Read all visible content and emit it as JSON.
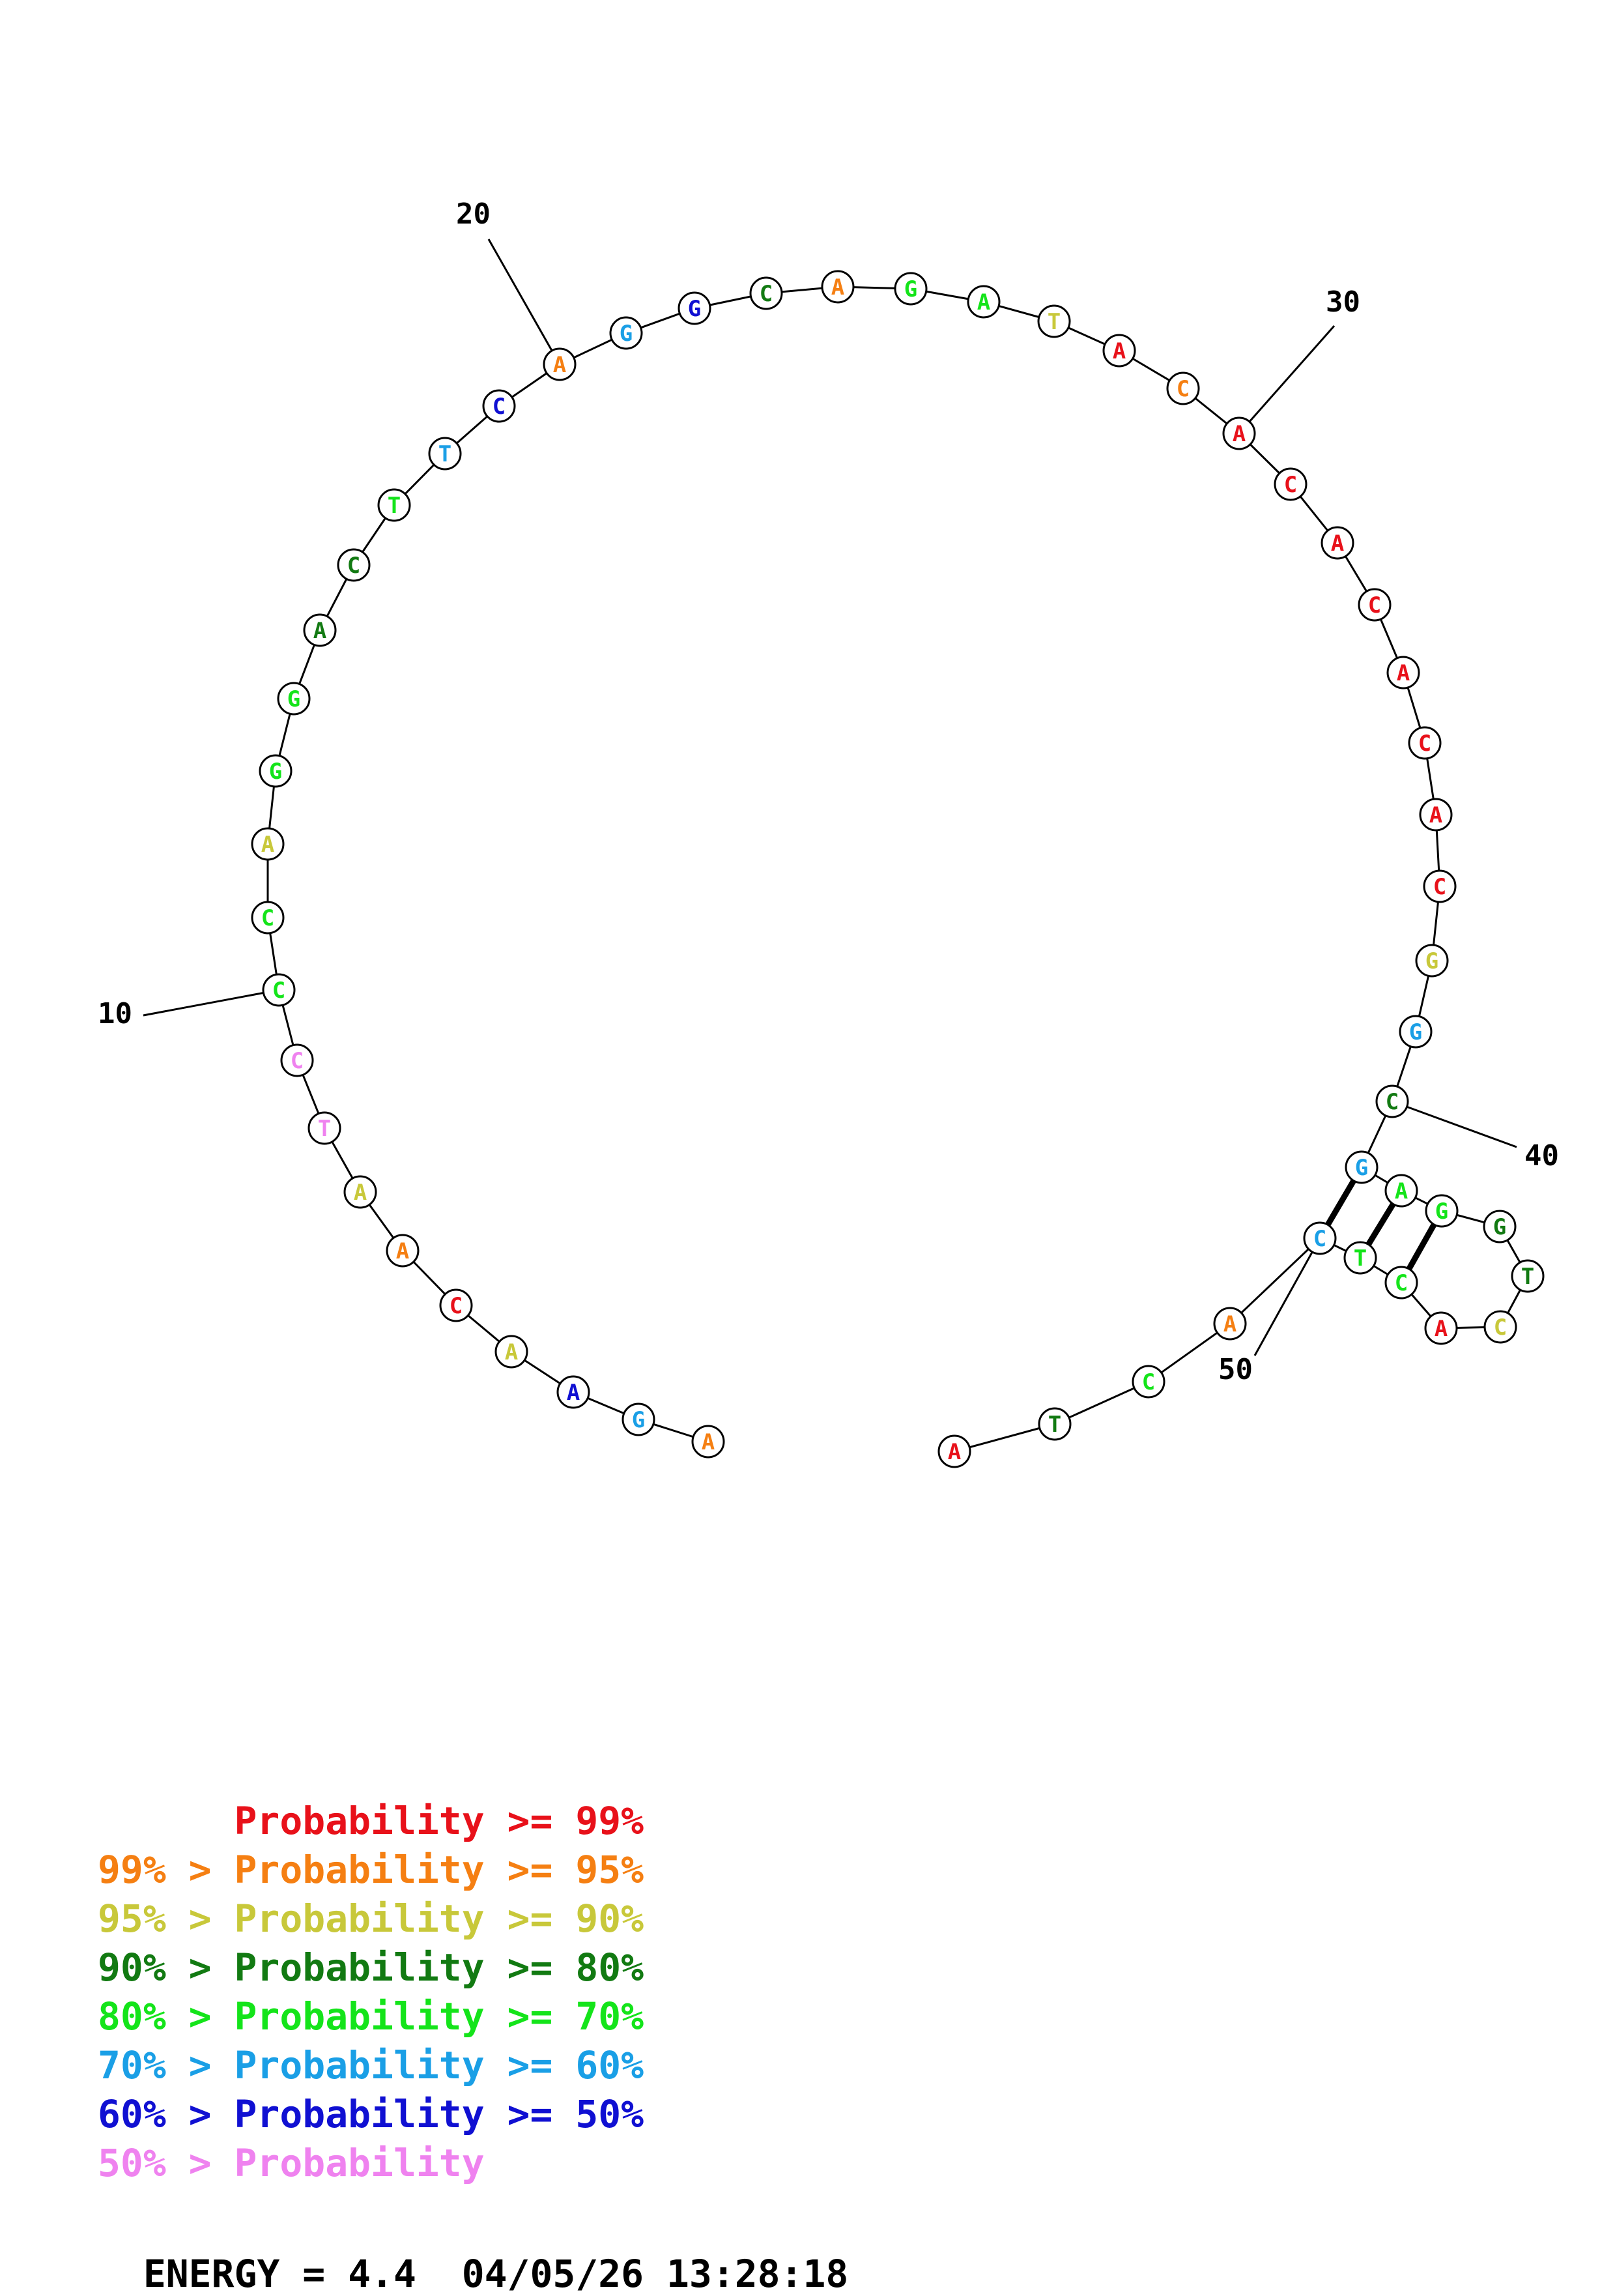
{
  "colors": {
    "red": "#e8111a",
    "orange": "#f57f12",
    "yellow": "#c8c83a",
    "darkgreen": "#127a12",
    "green": "#14e41a",
    "cyan": "#1a9fe6",
    "blue": "#1010d2",
    "pink": "#ef82ef",
    "black": "#000000"
  },
  "nucleotides": [
    {
      "i": 1,
      "base": "A",
      "color": "orange"
    },
    {
      "i": 2,
      "base": "G",
      "color": "cyan"
    },
    {
      "i": 3,
      "base": "A",
      "color": "blue"
    },
    {
      "i": 4,
      "base": "A",
      "color": "yellow"
    },
    {
      "i": 5,
      "base": "C",
      "color": "red"
    },
    {
      "i": 6,
      "base": "A",
      "color": "orange"
    },
    {
      "i": 7,
      "base": "A",
      "color": "yellow"
    },
    {
      "i": 8,
      "base": "T",
      "color": "pink"
    },
    {
      "i": 9,
      "base": "C",
      "color": "pink"
    },
    {
      "i": 10,
      "base": "C",
      "color": "green"
    },
    {
      "i": 11,
      "base": "C",
      "color": "green"
    },
    {
      "i": 12,
      "base": "A",
      "color": "yellow"
    },
    {
      "i": 13,
      "base": "G",
      "color": "green"
    },
    {
      "i": 14,
      "base": "G",
      "color": "green"
    },
    {
      "i": 15,
      "base": "A",
      "color": "darkgreen"
    },
    {
      "i": 16,
      "base": "C",
      "color": "darkgreen"
    },
    {
      "i": 17,
      "base": "T",
      "color": "green"
    },
    {
      "i": 18,
      "base": "T",
      "color": "cyan"
    },
    {
      "i": 19,
      "base": "C",
      "color": "blue"
    },
    {
      "i": 20,
      "base": "A",
      "color": "orange"
    },
    {
      "i": 21,
      "base": "G",
      "color": "cyan"
    },
    {
      "i": 22,
      "base": "G",
      "color": "blue"
    },
    {
      "i": 23,
      "base": "C",
      "color": "darkgreen"
    },
    {
      "i": 24,
      "base": "A",
      "color": "orange"
    },
    {
      "i": 25,
      "base": "G",
      "color": "green"
    },
    {
      "i": 26,
      "base": "A",
      "color": "green"
    },
    {
      "i": 27,
      "base": "T",
      "color": "yellow"
    },
    {
      "i": 28,
      "base": "A",
      "color": "red"
    },
    {
      "i": 29,
      "base": "C",
      "color": "orange"
    },
    {
      "i": 30,
      "base": "A",
      "color": "red"
    },
    {
      "i": 31,
      "base": "C",
      "color": "red"
    },
    {
      "i": 32,
      "base": "A",
      "color": "red"
    },
    {
      "i": 33,
      "base": "C",
      "color": "red"
    },
    {
      "i": 34,
      "base": "A",
      "color": "red"
    },
    {
      "i": 35,
      "base": "C",
      "color": "red"
    },
    {
      "i": 36,
      "base": "A",
      "color": "red"
    },
    {
      "i": 37,
      "base": "C",
      "color": "red"
    },
    {
      "i": 38,
      "base": "G",
      "color": "yellow"
    },
    {
      "i": 39,
      "base": "G",
      "color": "cyan"
    },
    {
      "i": 40,
      "base": "C",
      "color": "darkgreen"
    },
    {
      "i": 41,
      "base": "G",
      "color": "cyan"
    },
    {
      "i": 42,
      "base": "A",
      "color": "green"
    },
    {
      "i": 43,
      "base": "G",
      "color": "green"
    },
    {
      "i": 44,
      "base": "G",
      "color": "darkgreen"
    },
    {
      "i": 45,
      "base": "T",
      "color": "darkgreen"
    },
    {
      "i": 46,
      "base": "C",
      "color": "yellow"
    },
    {
      "i": 47,
      "base": "A",
      "color": "red"
    },
    {
      "i": 48,
      "base": "C",
      "color": "green"
    },
    {
      "i": 49,
      "base": "T",
      "color": "green"
    },
    {
      "i": 50,
      "base": "C",
      "color": "cyan"
    },
    {
      "i": 51,
      "base": "A",
      "color": "orange"
    },
    {
      "i": 52,
      "base": "C",
      "color": "green"
    },
    {
      "i": 53,
      "base": "T",
      "color": "darkgreen"
    },
    {
      "i": 54,
      "base": "A",
      "color": "red"
    }
  ],
  "base_pairs": [
    [
      41,
      50
    ],
    [
      42,
      49
    ],
    [
      43,
      48
    ]
  ],
  "index_labels": [
    "10",
    "20",
    "30",
    "40",
    "50"
  ],
  "legend": [
    {
      "prefix": "",
      "label": "Probability",
      "op": ">=",
      "threshold": "99%",
      "color": "red"
    },
    {
      "prefix": "99% >",
      "label": "Probability",
      "op": ">=",
      "threshold": "95%",
      "color": "orange"
    },
    {
      "prefix": "95% >",
      "label": "Probability",
      "op": ">=",
      "threshold": "90%",
      "color": "yellow"
    },
    {
      "prefix": "90% >",
      "label": "Probability",
      "op": ">=",
      "threshold": "80%",
      "color": "darkgreen"
    },
    {
      "prefix": "80% >",
      "label": "Probability",
      "op": ">=",
      "threshold": "70%",
      "color": "green"
    },
    {
      "prefix": "70% >",
      "label": "Probability",
      "op": ">=",
      "threshold": "60%",
      "color": "cyan"
    },
    {
      "prefix": "60% >",
      "label": "Probability",
      "op": ">=",
      "threshold": "50%",
      "color": "blue"
    },
    {
      "prefix": "50% >",
      "label": "Probability",
      "op": "",
      "threshold": "",
      "color": "pink"
    }
  ],
  "footer": {
    "energy_label": "ENERGY = 4.4",
    "datetime": "04/05/26 13:28:18"
  }
}
